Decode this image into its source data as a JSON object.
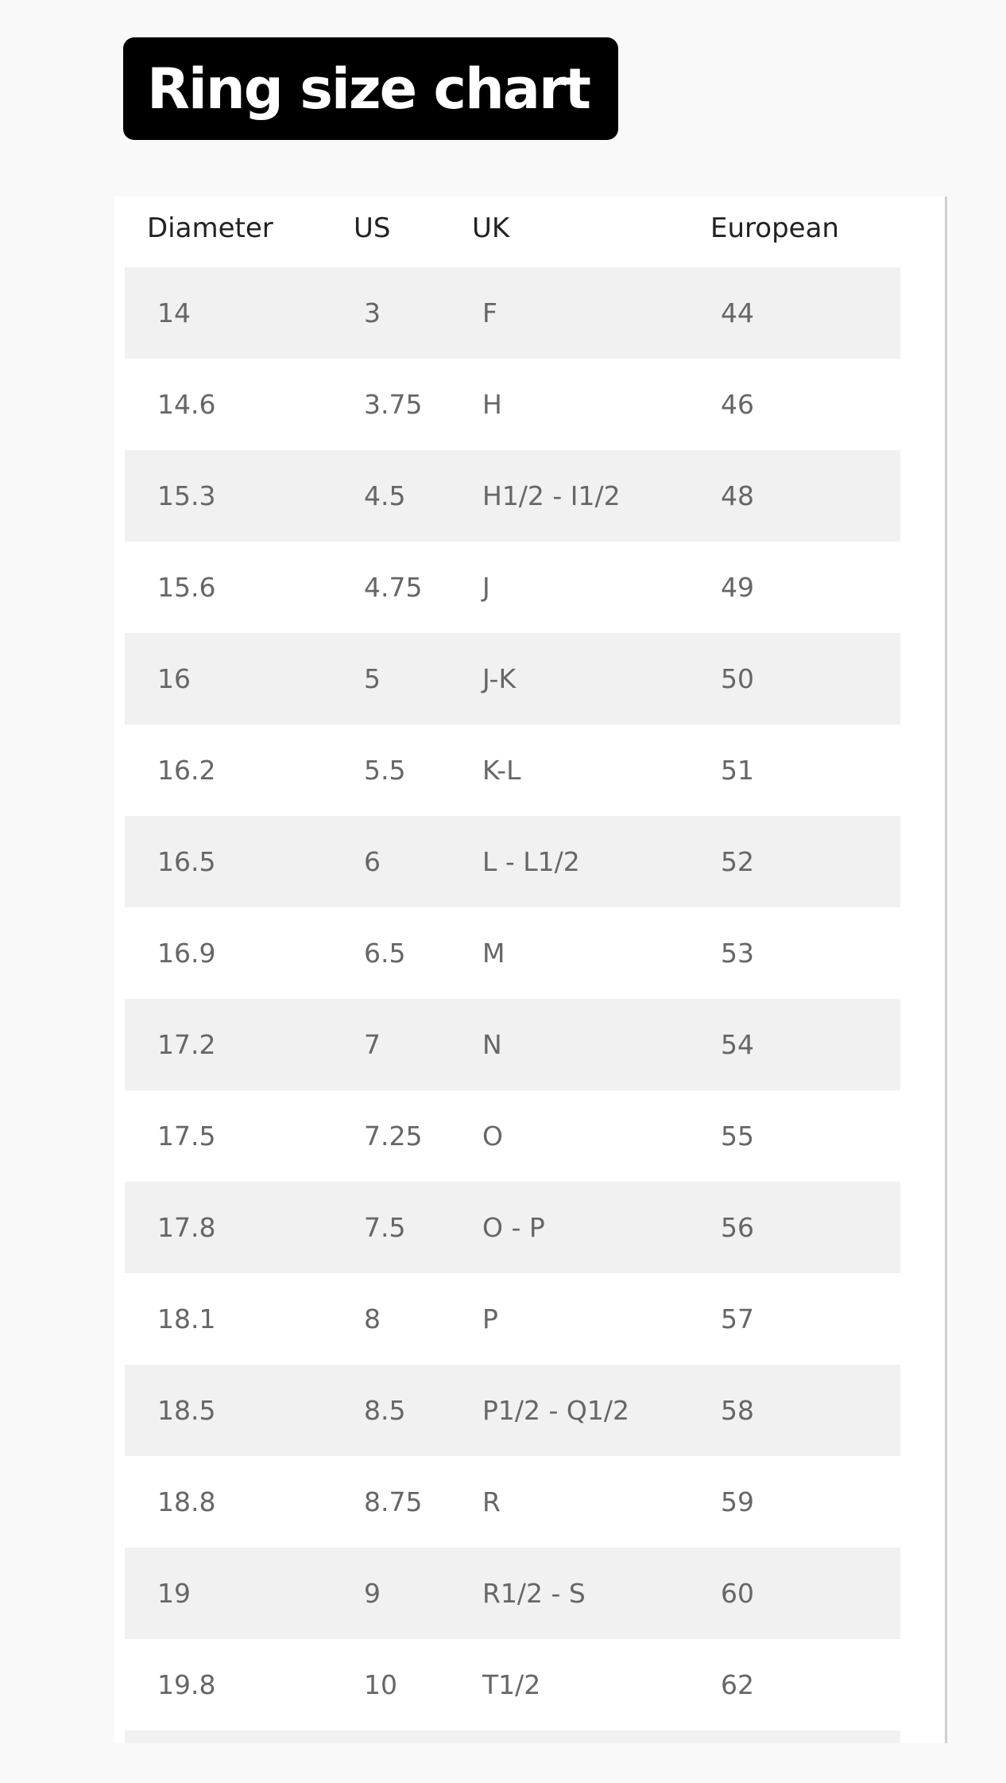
{
  "title": "Ring size chart",
  "table": {
    "headers": [
      "Diameter",
      "US",
      "UK",
      "European"
    ],
    "rows": [
      [
        "14",
        "3",
        "F",
        "44"
      ],
      [
        "14.6",
        "3.75",
        "H",
        "46"
      ],
      [
        "15.3",
        "4.5",
        "H1/2 - I1/2",
        "48"
      ],
      [
        "15.6",
        "4.75",
        "J",
        "49"
      ],
      [
        "16",
        "5",
        "J-K",
        "50"
      ],
      [
        "16.2",
        "5.5",
        "K-L",
        "51"
      ],
      [
        "16.5",
        "6",
        "L - L1/2",
        "52"
      ],
      [
        "16.9",
        "6.5",
        "M",
        "53"
      ],
      [
        "17.2",
        "7",
        "N",
        "54"
      ],
      [
        "17.5",
        "7.25",
        "O",
        "55"
      ],
      [
        "17.8",
        "7.5",
        "O - P",
        "56"
      ],
      [
        "18.1",
        "8",
        "P",
        "57"
      ],
      [
        "18.5",
        "8.5",
        "P1/2 - Q1/2",
        "58"
      ],
      [
        "18.8",
        "8.75",
        "R",
        "59"
      ],
      [
        "19",
        "9",
        "R1/2 - S",
        "60"
      ],
      [
        "19.8",
        "10",
        "T1/2",
        "62"
      ]
    ]
  }
}
